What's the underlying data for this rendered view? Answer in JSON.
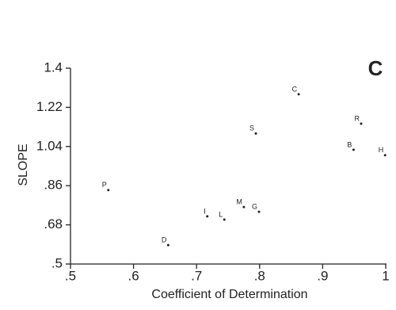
{
  "chart_data": {
    "type": "scatter",
    "panel_label": "C",
    "x_label": "Coefficient of Determination",
    "y_label": "SLOPE",
    "point_labels": [
      "P",
      "C",
      "R",
      "S",
      "B",
      "H",
      "M",
      "G",
      "I",
      "L",
      "D"
    ],
    "x": [
      0.56,
      0.862,
      0.961,
      0.794,
      0.949,
      0.999,
      0.775,
      0.799,
      0.717,
      0.744,
      0.655
    ],
    "y": [
      0.84,
      1.28,
      1.145,
      1.1,
      1.025,
      1.0,
      0.762,
      0.74,
      0.719,
      0.704,
      0.587
    ],
    "color": "#222222",
    "xlim": [
      0.5,
      1
    ],
    "ylim": [
      0.5,
      1.4
    ],
    "xticks": [
      {
        "value": 0.5,
        "label": ".5"
      },
      {
        "value": 0.6,
        "label": ".6"
      },
      {
        "value": 0.7,
        "label": ".7"
      },
      {
        "value": 0.8,
        "label": ".8"
      },
      {
        "value": 0.9,
        "label": ".9"
      },
      1
    ],
    "yticks": [
      {
        "value": 0.5,
        "label": ".5"
      },
      {
        "value": 0.68,
        "label": ".68"
      },
      {
        "value": 0.86,
        "label": ".86"
      },
      1.04,
      1.22,
      1.4
    ]
  }
}
